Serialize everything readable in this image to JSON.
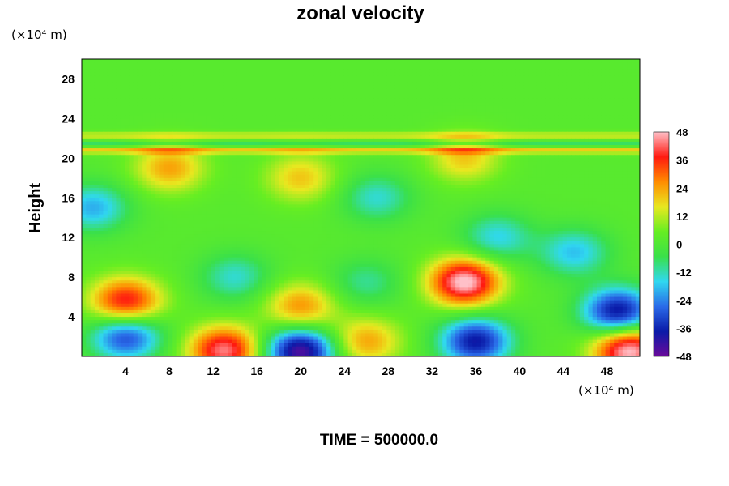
{
  "chart_data": {
    "type": "heatmap",
    "title": "zonal velocity",
    "ylabel": "Height",
    "xlabel": "",
    "x_unit": "(×10⁴ m)",
    "y_unit": "(×10⁴ m)",
    "x_ticks": [
      4,
      8,
      12,
      16,
      20,
      24,
      28,
      32,
      36,
      40,
      44,
      48
    ],
    "y_ticks": [
      4,
      8,
      12,
      16,
      20,
      24,
      28
    ],
    "xlim": [
      0,
      51
    ],
    "ylim": [
      0,
      30
    ],
    "colorbar": {
      "min": -48,
      "max": 48,
      "ticks": [
        48,
        36,
        24,
        12,
        0,
        -12,
        -24,
        -36,
        -48
      ],
      "colormap": [
        "#6a0a9a",
        "#0a1aa8",
        "#2a6ae8",
        "#30d8f0",
        "#3ae04a",
        "#66ee22",
        "#e8e820",
        "#ff8c00",
        "#ff1a10",
        "#ffc0c8"
      ]
    },
    "background_value": 2,
    "features": [
      {
        "x": 4,
        "y": 5.5,
        "value": 38
      },
      {
        "x": 20,
        "y": 5,
        "value": 24
      },
      {
        "x": 35,
        "y": 7.5,
        "value": 48
      },
      {
        "x": 13,
        "y": 0.6,
        "value": 42
      },
      {
        "x": 50,
        "y": 0.6,
        "value": 48
      },
      {
        "x": 26,
        "y": 1.5,
        "value": 22
      },
      {
        "x": 20,
        "y": 0.5,
        "value": -48
      },
      {
        "x": 36,
        "y": 1.5,
        "value": -40
      },
      {
        "x": 49,
        "y": 4.5,
        "value": -42
      },
      {
        "x": 4,
        "y": 2,
        "value": -34
      },
      {
        "x": 14,
        "y": 8,
        "value": -16
      },
      {
        "x": 26,
        "y": 7.5,
        "value": -12
      },
      {
        "x": 1,
        "y": 15,
        "value": -22
      },
      {
        "x": 45,
        "y": 10.5,
        "value": -20
      },
      {
        "x": 38,
        "y": 12,
        "value": -18
      },
      {
        "x": 27,
        "y": 16,
        "value": -16
      },
      {
        "x": 8,
        "y": 19,
        "value": 22
      },
      {
        "x": 20,
        "y": 18,
        "value": 18
      },
      {
        "x": 35,
        "y": 20,
        "value": 18
      }
    ],
    "layers": [
      {
        "y": 20.8,
        "value": 18
      },
      {
        "y": 21.4,
        "value": -10
      },
      {
        "y": 22.3,
        "value": 12
      }
    ]
  },
  "footer": {
    "time_label": "TIME = 500000.0"
  }
}
